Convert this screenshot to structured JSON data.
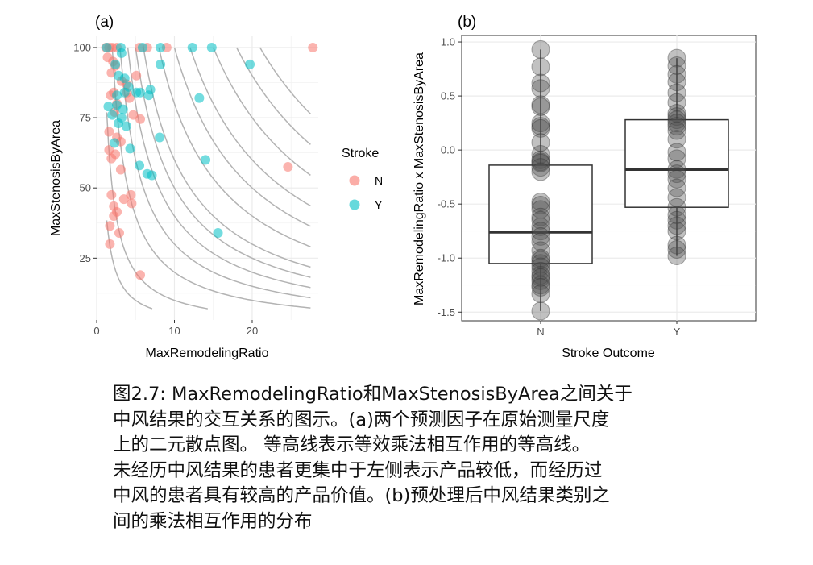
{
  "chart_data": [
    {
      "type": "scatter",
      "panel_label": "(a)",
      "xlabel": "MaxRemodelingRatio",
      "ylabel": "MaxStenosisByArea",
      "xlim": [
        0,
        28.5
      ],
      "ylim": [
        3,
        104
      ],
      "xticks": [
        "0",
        "10",
        "20"
      ],
      "yticks": [
        "25",
        "50",
        "75",
        "100"
      ],
      "grid": true,
      "contour_levels": [
        50,
        100,
        200,
        300,
        400,
        500,
        600,
        800,
        1000,
        1200,
        1500,
        1800,
        2100
      ],
      "legend": {
        "title": "Stroke",
        "placement": "right",
        "entries": [
          "N",
          "Y"
        ]
      },
      "colors": {
        "N": "#F8766D",
        "Y": "#00BFC4"
      },
      "series": [
        {
          "name": "N",
          "points": [
            [
              1.2,
              100
            ],
            [
              1.6,
              100
            ],
            [
              2.0,
              100
            ],
            [
              2.6,
              100
            ],
            [
              5.5,
              100
            ],
            [
              6.5,
              100
            ],
            [
              9.0,
              100
            ],
            [
              27.8,
              100
            ],
            [
              1.4,
              96.5
            ],
            [
              2.1,
              95
            ],
            [
              2.4,
              93.5
            ],
            [
              1.9,
              91
            ],
            [
              3.2,
              88
            ],
            [
              3.8,
              87
            ],
            [
              5.1,
              90
            ],
            [
              2.2,
              84
            ],
            [
              3.9,
              84
            ],
            [
              1.8,
              83
            ],
            [
              2.6,
              80
            ],
            [
              4.2,
              82
            ],
            [
              2.3,
              77
            ],
            [
              4.7,
              76
            ],
            [
              5.6,
              74.5
            ],
            [
              1.6,
              70
            ],
            [
              2.6,
              68
            ],
            [
              3.1,
              66.5
            ],
            [
              1.6,
              63.5
            ],
            [
              2.4,
              62
            ],
            [
              1.9,
              60.5
            ],
            [
              3.1,
              56.5
            ],
            [
              1.9,
              47.5
            ],
            [
              3.5,
              46
            ],
            [
              4.4,
              47.5
            ],
            [
              2.2,
              43.5
            ],
            [
              2.6,
              41.5
            ],
            [
              2.2,
              40
            ],
            [
              4.5,
              44.5
            ],
            [
              1.7,
              36.5
            ],
            [
              2.9,
              34
            ],
            [
              1.7,
              30
            ],
            [
              5.6,
              19
            ],
            [
              24.6,
              57.5
            ]
          ]
        },
        {
          "name": "Y",
          "points": [
            [
              1.3,
              100
            ],
            [
              3.1,
              100
            ],
            [
              5.9,
              100
            ],
            [
              8.2,
              100
            ],
            [
              12.3,
              100
            ],
            [
              14.8,
              100
            ],
            [
              3.2,
              98
            ],
            [
              2.4,
              94
            ],
            [
              8.2,
              94
            ],
            [
              19.7,
              94
            ],
            [
              2.8,
              90
            ],
            [
              3.6,
              89
            ],
            [
              4.1,
              86
            ],
            [
              6.9,
              85
            ],
            [
              2.6,
              83
            ],
            [
              3.6,
              84
            ],
            [
              5.1,
              84
            ],
            [
              5.6,
              84
            ],
            [
              6.7,
              83
            ],
            [
              13.2,
              82
            ],
            [
              1.5,
              79
            ],
            [
              2.6,
              79.5
            ],
            [
              3.4,
              78
            ],
            [
              2.0,
              76
            ],
            [
              3.2,
              75
            ],
            [
              2.8,
              73
            ],
            [
              3.8,
              72
            ],
            [
              8.1,
              68
            ],
            [
              2.3,
              66
            ],
            [
              4.3,
              64
            ],
            [
              14.0,
              60
            ],
            [
              5.5,
              58
            ],
            [
              6.5,
              55
            ],
            [
              7.1,
              54.5
            ],
            [
              15.6,
              34
            ]
          ]
        }
      ]
    },
    {
      "type": "box",
      "panel_label": "(b)",
      "xlabel": "Stroke Outcome",
      "ylabel": "MaxRemodelingRatio x MaxStenosisByArea",
      "ylim": [
        -1.58,
        1.06
      ],
      "yticks": [
        "1.0",
        "0.5",
        "0.0",
        "-0.5",
        "-1.0",
        "-1.5"
      ],
      "categories": [
        "N",
        "Y"
      ],
      "grid": true,
      "boxes": [
        {
          "category": "N",
          "q1": -1.05,
          "median": -0.76,
          "q3": -0.14,
          "whisker_low": -1.49,
          "whisker_high": 0.93
        },
        {
          "category": "Y",
          "q1": -0.53,
          "median": -0.18,
          "q3": 0.28,
          "whisker_low": -0.98,
          "whisker_high": 0.85
        }
      ],
      "points": {
        "N": [
          0.93,
          0.77,
          0.62,
          0.57,
          0.42,
          0.4,
          0.25,
          0.22,
          0.2,
          0.07,
          -0.04,
          -0.09,
          -0.11,
          -0.12,
          -0.16,
          -0.2,
          -0.48,
          -0.51,
          -0.55,
          -0.62,
          -0.65,
          -0.71,
          -0.75,
          -0.8,
          -0.85,
          -0.93,
          -1.0,
          -1.02,
          -1.05,
          -1.08,
          -1.12,
          -1.16,
          -1.18,
          -1.21,
          -1.25,
          -1.27,
          -1.33,
          -1.49
        ],
        "Y": [
          0.85,
          0.78,
          0.7,
          0.63,
          0.53,
          0.44,
          0.34,
          0.31,
          0.28,
          0.25,
          0.22,
          0.18,
          0.1,
          -0.02,
          -0.08,
          -0.18,
          -0.22,
          -0.27,
          -0.35,
          -0.44,
          -0.53,
          -0.6,
          -0.65,
          -0.7,
          -0.75,
          -0.88,
          -0.92,
          -0.98
        ]
      }
    }
  ],
  "caption": {
    "lines": [
      "图2.7: MaxRemodelingRatio和MaxStenosisByArea之间关于",
      "中风结果的交互关系的图示。(a)两个预测因子在原始测量尺度",
      "上的二元散点图。 等高线表示等效乘法相互作用的等高线。",
      "未经历中风结果的患者更集中于左侧表示产品较低，而经历过",
      "中风的患者具有较高的产品价值。(b)预处理后中风结果类别之",
      "间的乘法相互作用的分布"
    ]
  }
}
